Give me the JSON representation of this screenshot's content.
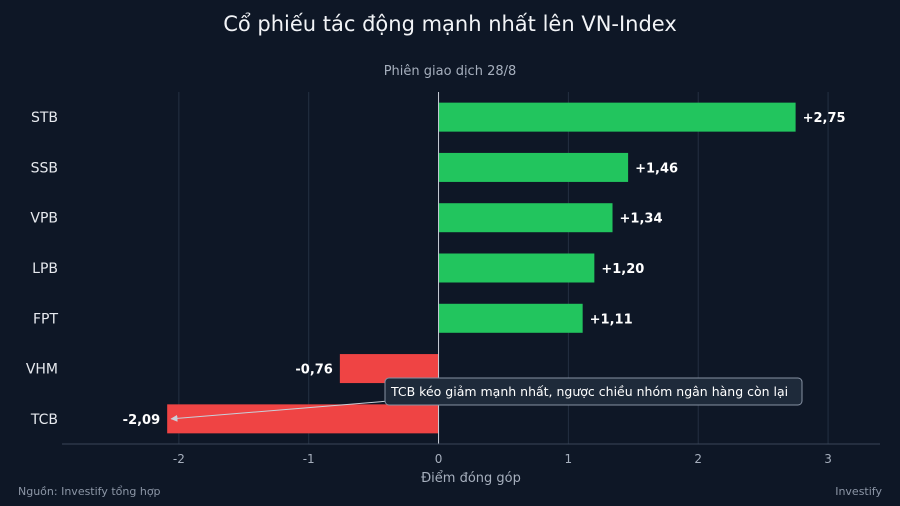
{
  "header": {
    "title": "Cổ phiếu tác động mạnh nhất lên VN-Index",
    "subtitle": "Phiên giao dịch 28/8"
  },
  "footer": {
    "source": "Nguồn: Investify tổng hợp",
    "brand": "Investify"
  },
  "colors": {
    "positive": "#22c55e",
    "negative": "#ef4444",
    "background": "#0e1726",
    "grid": "#243042"
  },
  "chart_data": {
    "type": "bar",
    "orientation": "horizontal",
    "title": "Cổ phiếu tác động mạnh nhất lên VN-Index",
    "subtitle": "Phiên giao dịch 28/8",
    "xlabel": "Điểm đóng góp",
    "ylabel": "",
    "categories": [
      "STB",
      "SSB",
      "VPB",
      "LPB",
      "FPT",
      "VHM",
      "TCB"
    ],
    "values": [
      2.75,
      1.46,
      1.34,
      1.2,
      1.11,
      -0.76,
      -2.09
    ],
    "value_labels": [
      "+2,75",
      "+1,46",
      "+1,34",
      "+1,20",
      "+1,11",
      "-0,76",
      "-2,09"
    ],
    "xlim": [
      -2.9,
      3.4
    ],
    "xticks": [
      -2,
      -1,
      0,
      1,
      2,
      3
    ],
    "xtick_labels": [
      "-2",
      "-1",
      "0",
      "1",
      "2",
      "3"
    ],
    "grid": true,
    "annotation": {
      "text": "TCB kéo giảm mạnh nhất, ngược chiều nhóm ngân hàng còn lại",
      "target_category": "TCB",
      "target_value": -2.09
    }
  }
}
